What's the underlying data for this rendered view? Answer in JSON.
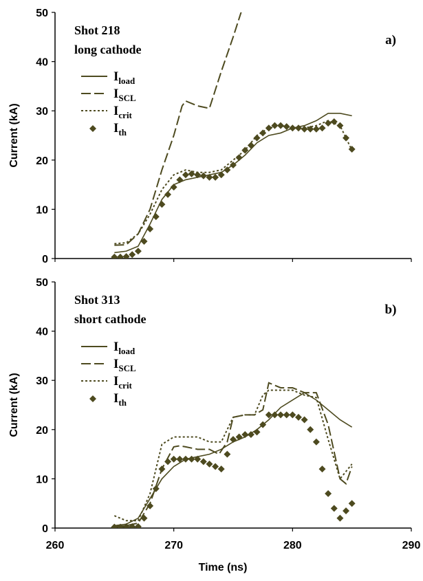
{
  "colors": {
    "series": "#4d4a1f",
    "axis": "#000000"
  },
  "chart_data": [
    {
      "type": "line",
      "panel_label": "a)",
      "annotation": [
        "Shot 218",
        "long cathode"
      ],
      "ylabel": "Current (kA)",
      "xlabel": "",
      "ylim": [
        0,
        50
      ],
      "xlim": [
        260,
        290
      ],
      "y_ticks": [
        0,
        10,
        20,
        30,
        40,
        50
      ],
      "x_ticks": [],
      "grid": false,
      "legend_position": "left",
      "series": [
        {
          "name": "I",
          "sub": "load",
          "style": "solid",
          "x": [
            265,
            266,
            267,
            268,
            269,
            270,
            271,
            272,
            273,
            274,
            275,
            276,
            277,
            278,
            279,
            280,
            281,
            282,
            283,
            284,
            285
          ],
          "y": [
            1.2,
            1.5,
            2.5,
            7,
            12,
            15,
            16,
            16.5,
            17,
            17.5,
            19,
            21,
            23.5,
            25,
            25.5,
            26.5,
            27,
            28,
            29.5,
            29.5,
            29
          ]
        },
        {
          "name": "I",
          "sub": "SCL",
          "style": "dashed",
          "x": [
            265,
            266,
            267,
            268,
            269,
            270,
            270.7,
            271,
            272,
            273,
            274,
            275,
            275.8
          ],
          "y": [
            2.7,
            2.8,
            5,
            10,
            18,
            25,
            31,
            32,
            31,
            30.5,
            38,
            45,
            51
          ]
        },
        {
          "name": "I",
          "sub": "crit",
          "style": "dotted",
          "x": [
            265,
            266,
            267,
            268,
            269,
            270,
            271,
            272,
            273,
            274,
            275,
            276,
            277,
            278,
            279,
            280,
            281,
            282,
            283,
            284,
            285
          ],
          "y": [
            3,
            3.2,
            5,
            9,
            14,
            17,
            18,
            17.5,
            17.5,
            18,
            20,
            22,
            25,
            26.5,
            27,
            26.5,
            26.5,
            27,
            28,
            27,
            22
          ]
        },
        {
          "name": "I",
          "sub": "th",
          "style": "markers",
          "x": [
            265,
            265.5,
            266,
            266.5,
            267,
            267.5,
            268,
            268.5,
            269,
            269.5,
            270,
            270.5,
            271,
            271.5,
            272,
            272.5,
            273,
            273.5,
            274,
            274.5,
            275,
            275.5,
            276,
            276.5,
            277,
            277.5,
            278,
            278.5,
            279,
            279.5,
            280,
            280.5,
            281,
            281.5,
            282,
            282.5,
            283,
            283.5,
            284,
            284.5,
            285
          ],
          "y": [
            0.3,
            0.3,
            0.4,
            0.8,
            1.5,
            3.5,
            6,
            8.5,
            11,
            13,
            14.5,
            16,
            17,
            17.2,
            17,
            16.8,
            16.5,
            16.5,
            17,
            18,
            19,
            20.5,
            22,
            23,
            24.5,
            25.5,
            26.5,
            27,
            27,
            26.8,
            26.5,
            26.5,
            26.3,
            26.3,
            26.3,
            26.5,
            27.5,
            27.8,
            27,
            24.5,
            22.2
          ]
        }
      ]
    },
    {
      "type": "line",
      "panel_label": "b)",
      "annotation": [
        "Shot 313",
        "short cathode"
      ],
      "ylabel": "Current (kA)",
      "xlabel": "Time (ns)",
      "ylim": [
        0,
        50
      ],
      "xlim": [
        260,
        290
      ],
      "y_ticks": [
        0,
        10,
        20,
        30,
        40,
        50
      ],
      "x_ticks": [
        260,
        270,
        280,
        290
      ],
      "grid": false,
      "legend_position": "left",
      "series": [
        {
          "name": "I",
          "sub": "load",
          "style": "solid",
          "x": [
            265,
            266,
            267,
            268,
            269,
            270,
            271,
            272,
            273,
            274,
            275,
            276,
            277,
            278,
            279,
            280,
            281,
            282,
            283,
            284,
            285
          ],
          "y": [
            0.5,
            0.8,
            2,
            6,
            10,
            12.5,
            14,
            14.5,
            15,
            16,
            17.5,
            18.5,
            20,
            22,
            24.5,
            26,
            27.5,
            26,
            24,
            22,
            20.5
          ]
        },
        {
          "name": "I",
          "sub": "SCL",
          "style": "dashed",
          "x": [
            265,
            266,
            267,
            268,
            269,
            270,
            270.5,
            271,
            272,
            273,
            273.8,
            274.5,
            275,
            276,
            276.8,
            277.5,
            278,
            279,
            280,
            281,
            282,
            283,
            284,
            284.5,
            285
          ],
          "y": [
            0.3,
            0.5,
            1,
            5,
            12,
            16.5,
            16.7,
            16.5,
            16,
            16,
            15,
            17.5,
            22.5,
            23,
            23,
            24,
            29.5,
            28.5,
            28.5,
            27.5,
            27.5,
            21,
            10,
            9,
            12.5
          ]
        },
        {
          "name": "I",
          "sub": "crit",
          "style": "dotted",
          "x": [
            265,
            266,
            267,
            268,
            269,
            270,
            271,
            272,
            273,
            274,
            275,
            276,
            276.8,
            277.5,
            278,
            279,
            280,
            281,
            282,
            283,
            284,
            285
          ],
          "y": [
            2.5,
            1.5,
            1.5,
            7,
            17,
            18.5,
            18.5,
            18.5,
            17.5,
            17.5,
            22.5,
            23,
            23,
            27,
            28,
            28,
            28,
            27,
            26.5,
            18,
            10,
            13
          ]
        },
        {
          "name": "I",
          "sub": "th",
          "style": "markers",
          "x": [
            265,
            265.5,
            266,
            266.5,
            267,
            267.5,
            268,
            268.5,
            269,
            269.5,
            270,
            270.5,
            271,
            271.5,
            272,
            272.5,
            273,
            273.5,
            274,
            274.5,
            275,
            275.5,
            276,
            276.5,
            277,
            277.5,
            278,
            278.5,
            279,
            279.5,
            280,
            280.5,
            281,
            281.5,
            282,
            282.5,
            283,
            283.5,
            284,
            284.5,
            285
          ],
          "y": [
            0.2,
            0.2,
            0.3,
            0.3,
            0.3,
            2,
            4.5,
            8,
            12,
            13.5,
            14,
            14,
            14,
            14,
            14,
            13.5,
            13,
            12.5,
            12,
            15,
            18,
            18.5,
            19,
            19,
            19.5,
            21,
            23,
            23,
            23,
            23,
            23,
            22.5,
            22,
            20,
            17.5,
            12,
            7,
            4,
            2,
            3.5,
            5
          ]
        }
      ]
    }
  ]
}
